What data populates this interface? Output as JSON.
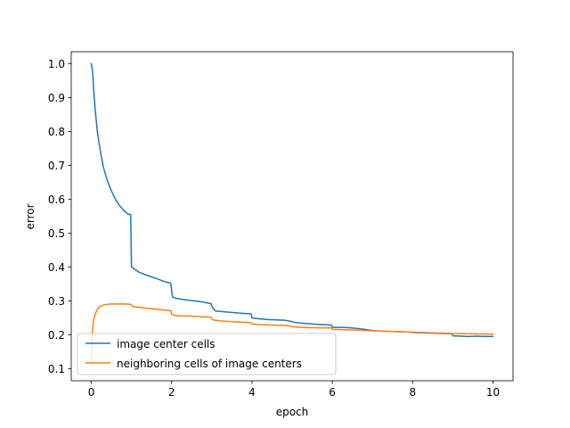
{
  "chart_data": {
    "type": "line",
    "title": "",
    "xlabel": "epoch",
    "ylabel": "error",
    "xlim": [
      -0.5,
      10.5
    ],
    "ylim": [
      0.0645,
      1.0355
    ],
    "xticks": [
      0,
      2,
      4,
      6,
      8,
      10
    ],
    "xtick_labels": [
      "0",
      "2",
      "4",
      "6",
      "8",
      "10"
    ],
    "yticks": [
      0.1,
      0.2,
      0.3,
      0.4,
      0.5,
      0.6,
      0.7,
      0.8,
      0.9,
      1.0
    ],
    "ytick_labels": [
      "0.1",
      "0.2",
      "0.3",
      "0.4",
      "0.5",
      "0.6",
      "0.7",
      "0.8",
      "0.9",
      "1.0"
    ],
    "grid": false,
    "legend_position": "lower-left",
    "series": [
      {
        "name": "image center cells",
        "color": "#1f77b4",
        "x": [
          0,
          0.03,
          0.06,
          0.1,
          0.15,
          0.2,
          0.25,
          0.3,
          0.4,
          0.5,
          0.6,
          0.7,
          0.8,
          0.9,
          0.98,
          0.99,
          1.0,
          1.1,
          1.2,
          1.4,
          1.6,
          1.8,
          1.98,
          2.0,
          2.02,
          2.1,
          2.3,
          2.5,
          2.7,
          2.98,
          3.0,
          3.05,
          3.1,
          3.3,
          3.5,
          3.7,
          3.98,
          4.0,
          4.05,
          4.2,
          4.4,
          4.6,
          4.8,
          4.98,
          5.0,
          5.2,
          5.4,
          5.6,
          5.8,
          5.98,
          6.0,
          6.2,
          6.4,
          6.6,
          6.8,
          7.0,
          7.2,
          7.5,
          7.8,
          8.0,
          8.2,
          8.5,
          8.8,
          8.98,
          9.0,
          9.2,
          9.4,
          9.6,
          9.8,
          10.0
        ],
        "values": [
          1.0,
          0.98,
          0.92,
          0.86,
          0.8,
          0.76,
          0.725,
          0.695,
          0.655,
          0.625,
          0.6,
          0.582,
          0.568,
          0.557,
          0.555,
          0.47,
          0.4,
          0.392,
          0.384,
          0.375,
          0.367,
          0.358,
          0.352,
          0.33,
          0.312,
          0.308,
          0.304,
          0.301,
          0.298,
          0.292,
          0.285,
          0.275,
          0.27,
          0.268,
          0.266,
          0.264,
          0.262,
          0.25,
          0.249,
          0.247,
          0.245,
          0.244,
          0.243,
          0.24,
          0.238,
          0.235,
          0.233,
          0.231,
          0.23,
          0.229,
          0.222,
          0.222,
          0.221,
          0.219,
          0.216,
          0.213,
          0.211,
          0.21,
          0.209,
          0.207,
          0.206,
          0.205,
          0.204,
          0.203,
          0.197,
          0.196,
          0.195,
          0.196,
          0.195,
          0.195
        ]
      },
      {
        "name": "neighboring cells of image centers",
        "color": "#ff7f0e",
        "x": [
          0,
          0.02,
          0.05,
          0.1,
          0.15,
          0.2,
          0.3,
          0.4,
          0.5,
          0.6,
          0.8,
          0.98,
          1.0,
          1.05,
          1.2,
          1.4,
          1.6,
          1.8,
          1.98,
          2.0,
          2.05,
          2.2,
          2.5,
          2.8,
          2.98,
          3.0,
          3.05,
          3.2,
          3.5,
          3.8,
          3.98,
          4.0,
          4.2,
          4.5,
          4.8,
          4.98,
          5.0,
          5.2,
          5.5,
          5.98,
          6.0,
          6.3,
          6.6,
          7.0,
          7.5,
          8.0,
          8.5,
          9.0,
          9.5,
          10.0
        ],
        "values": [
          0.12,
          0.2,
          0.24,
          0.262,
          0.275,
          0.283,
          0.288,
          0.29,
          0.291,
          0.291,
          0.291,
          0.29,
          0.287,
          0.283,
          0.281,
          0.278,
          0.276,
          0.273,
          0.271,
          0.262,
          0.258,
          0.256,
          0.255,
          0.253,
          0.252,
          0.247,
          0.243,
          0.241,
          0.239,
          0.237,
          0.236,
          0.232,
          0.23,
          0.229,
          0.228,
          0.226,
          0.224,
          0.222,
          0.221,
          0.22,
          0.216,
          0.215,
          0.214,
          0.212,
          0.21,
          0.208,
          0.206,
          0.204,
          0.203,
          0.202
        ]
      }
    ]
  }
}
